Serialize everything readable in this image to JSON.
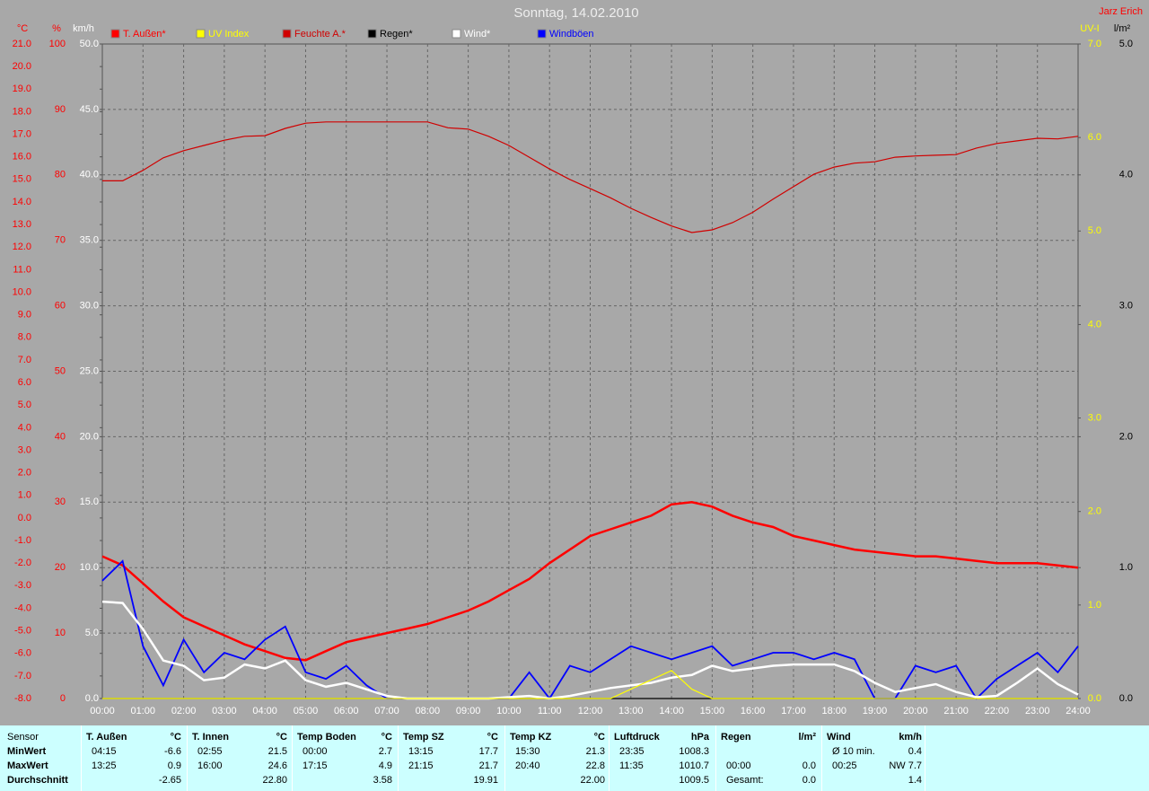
{
  "chart_data": {
    "type": "line",
    "title": "Sonntag, 14.02.2010",
    "author": "Jarz Erich",
    "grid": true,
    "x": [
      0,
      0.5,
      1,
      1.5,
      2,
      2.5,
      3,
      3.5,
      4,
      4.5,
      5,
      5.5,
      6,
      6.5,
      7,
      7.5,
      8,
      8.5,
      9,
      9.5,
      10,
      10.5,
      11,
      11.5,
      12,
      12.5,
      13,
      13.5,
      14,
      14.5,
      15,
      15.5,
      16,
      16.5,
      17,
      17.5,
      18,
      18.5,
      19,
      19.5,
      20,
      20.5,
      21,
      21.5,
      22,
      22.5,
      23,
      23.5,
      24
    ],
    "xlim": [
      0,
      24
    ],
    "xticks": [
      {
        "value": 0,
        "label": "00:00"
      },
      {
        "value": 1,
        "label": "01:00"
      },
      {
        "value": 2,
        "label": "02:00"
      },
      {
        "value": 3,
        "label": "03:00"
      },
      {
        "value": 4,
        "label": "04:00"
      },
      {
        "value": 5,
        "label": "05:00"
      },
      {
        "value": 6,
        "label": "06:00"
      },
      {
        "value": 7,
        "label": "07:00"
      },
      {
        "value": 8,
        "label": "08:00"
      },
      {
        "value": 9,
        "label": "09:00"
      },
      {
        "value": 10,
        "label": "10:00"
      },
      {
        "value": 11,
        "label": "11:00"
      },
      {
        "value": 12,
        "label": "12:00"
      },
      {
        "value": 13,
        "label": "13:00"
      },
      {
        "value": 14,
        "label": "14:00"
      },
      {
        "value": 15,
        "label": "15:00"
      },
      {
        "value": 16,
        "label": "16:00"
      },
      {
        "value": 17,
        "label": "17:00"
      },
      {
        "value": 18,
        "label": "18:00"
      },
      {
        "value": 19,
        "label": "19:00"
      },
      {
        "value": 20,
        "label": "20:00"
      },
      {
        "value": 21,
        "label": "21:00"
      },
      {
        "value": 22,
        "label": "22:00"
      },
      {
        "value": 23,
        "label": "23:00"
      },
      {
        "value": 24,
        "label": "24:00"
      }
    ],
    "ylabel": "°C",
    "ylim": [
      -8,
      21
    ],
    "yticks": [
      {
        "value": -8,
        "label": "-8.0"
      },
      {
        "value": -7,
        "label": "-7.0"
      },
      {
        "value": -6,
        "label": "-6.0"
      },
      {
        "value": -5,
        "label": "-5.0"
      },
      {
        "value": -4,
        "label": "-4.0"
      },
      {
        "value": -3,
        "label": "-3.0"
      },
      {
        "value": -2,
        "label": "-2.0"
      },
      {
        "value": -1,
        "label": "-1.0"
      },
      {
        "value": 0,
        "label": "0.0"
      },
      {
        "value": 1,
        "label": "1.0"
      },
      {
        "value": 2,
        "label": "2.0"
      },
      {
        "value": 3,
        "label": "3.0"
      },
      {
        "value": 4,
        "label": "4.0"
      },
      {
        "value": 5,
        "label": "5.0"
      },
      {
        "value": 6,
        "label": "6.0"
      },
      {
        "value": 7,
        "label": "7.0"
      },
      {
        "value": 8,
        "label": "8.0"
      },
      {
        "value": 9,
        "label": "9.0"
      },
      {
        "value": 10,
        "label": "10.0"
      },
      {
        "value": 11,
        "label": "11.0"
      },
      {
        "value": 12,
        "label": "12.0"
      },
      {
        "value": 13,
        "label": "13.0"
      },
      {
        "value": 14,
        "label": "14.0"
      },
      {
        "value": 15,
        "label": "15.0"
      },
      {
        "value": 16,
        "label": "16.0"
      },
      {
        "value": 17,
        "label": "17.0"
      },
      {
        "value": 18,
        "label": "18.0"
      },
      {
        "value": 19,
        "label": "19.0"
      },
      {
        "value": 20,
        "label": "20.0"
      },
      {
        "value": 21,
        "label": "21.0"
      }
    ],
    "y2label": "%",
    "y2lim": [
      0,
      100
    ],
    "y2ticks": [
      0,
      10,
      20,
      30,
      40,
      50,
      60,
      70,
      80,
      90,
      100
    ],
    "y3label": "km/h",
    "y3lim": [
      0,
      50
    ],
    "y3ticks": [
      {
        "value": 0,
        "label": "0.0"
      },
      {
        "value": 5,
        "label": "5.0"
      },
      {
        "value": 10,
        "label": "10.0"
      },
      {
        "value": 15,
        "label": "15.0"
      },
      {
        "value": 20,
        "label": "20.0"
      },
      {
        "value": 25,
        "label": "25.0"
      },
      {
        "value": 30,
        "label": "30.0"
      },
      {
        "value": 35,
        "label": "35.0"
      },
      {
        "value": 40,
        "label": "40.0"
      },
      {
        "value": 45,
        "label": "45.0"
      },
      {
        "value": 50,
        "label": "50.0"
      }
    ],
    "y4label": "UV-I",
    "y4lim": [
      0,
      7
    ],
    "y4ticks": [
      {
        "value": 0,
        "label": "0.0"
      },
      {
        "value": 1,
        "label": "1.0"
      },
      {
        "value": 2,
        "label": "2.0"
      },
      {
        "value": 3,
        "label": "3.0"
      },
      {
        "value": 4,
        "label": "4.0"
      },
      {
        "value": 5,
        "label": "5.0"
      },
      {
        "value": 6,
        "label": "6.0"
      },
      {
        "value": 7,
        "label": "7.0"
      }
    ],
    "y5label": "l/m²",
    "y5lim": [
      0,
      5
    ],
    "y5ticks": [
      {
        "value": 0,
        "label": "0.0"
      },
      {
        "value": 1,
        "label": "1.0"
      },
      {
        "value": 2,
        "label": "2.0"
      },
      {
        "value": 3,
        "label": "3.0"
      },
      {
        "value": 4,
        "label": "4.0"
      },
      {
        "value": 5,
        "label": "5.0"
      }
    ],
    "series": [
      {
        "name": "T. Außen*",
        "color": "#ff0000",
        "axis": "y",
        "values": [
          -1.7,
          -2.1,
          -2.9,
          -3.7,
          -4.4,
          -4.8,
          -5.2,
          -5.6,
          -5.9,
          -6.2,
          -6.3,
          -5.9,
          -5.5,
          -5.3,
          -5.1,
          -4.9,
          -4.7,
          -4.4,
          -4.1,
          -3.7,
          -3.2,
          -2.7,
          -2.0,
          -1.4,
          -0.8,
          -0.5,
          -0.2,
          0.1,
          0.6,
          0.7,
          0.5,
          0.1,
          -0.2,
          -0.4,
          -0.8,
          -1.0,
          -1.2,
          -1.4,
          -1.5,
          -1.6,
          -1.7,
          -1.7,
          -1.8,
          -1.9,
          -2.0,
          -2.0,
          -2.0,
          -2.1,
          -2.2
        ]
      },
      {
        "name": "UV Index",
        "color": "#ffff00",
        "axis": "y4",
        "values": [
          0,
          0,
          0,
          0,
          0,
          0,
          0,
          0,
          0,
          0,
          0,
          0,
          0,
          0,
          0,
          0,
          0,
          0,
          0,
          0,
          0,
          0,
          0,
          0,
          0,
          0,
          0.1,
          0.2,
          0.3,
          0.1,
          0,
          0,
          0,
          0,
          0,
          0,
          0,
          0,
          0,
          0,
          0,
          0,
          0,
          0,
          0,
          0,
          0,
          0,
          0
        ]
      },
      {
        "name": "Feuchte A.*",
        "color": "#d00000",
        "axis": "y2",
        "values": [
          79.1,
          79.1,
          80.7,
          82.6,
          83.7,
          84.5,
          85.3,
          85.9,
          86.0,
          87.1,
          87.9,
          88.1,
          88.1,
          88.1,
          88.1,
          88.1,
          88.1,
          87.2,
          87.0,
          85.9,
          84.5,
          82.7,
          80.9,
          79.3,
          77.9,
          76.5,
          74.9,
          73.5,
          72.2,
          71.2,
          71.6,
          72.7,
          74.3,
          76.3,
          78.2,
          80.1,
          81.2,
          81.8,
          82.0,
          82.7,
          82.9,
          83.0,
          83.1,
          84.1,
          84.8,
          85.2,
          85.6,
          85.5,
          85.9
        ]
      },
      {
        "name": "Regen*",
        "color": "#000000",
        "axis": "y5",
        "values": [
          0,
          0,
          0,
          0,
          0,
          0,
          0,
          0,
          0,
          0,
          0,
          0,
          0,
          0,
          0,
          0,
          0,
          0,
          0,
          0,
          0,
          0,
          0,
          0,
          0,
          0,
          0,
          0,
          0,
          0,
          0,
          0,
          0,
          0,
          0,
          0,
          0,
          0,
          0,
          0,
          0,
          0,
          0,
          0,
          0,
          0,
          0,
          0,
          0
        ]
      },
      {
        "name": "Wind*",
        "color": "#ffffff",
        "axis": "y3",
        "values": [
          7.4,
          7.3,
          5.3,
          2.9,
          2.5,
          1.4,
          1.6,
          2.6,
          2.3,
          2.9,
          1.4,
          0.9,
          1.2,
          0.7,
          0.2,
          0,
          0,
          0,
          0,
          0,
          0.1,
          0.2,
          0,
          0.2,
          0.5,
          0.8,
          1.0,
          1.2,
          1.6,
          1.8,
          2.5,
          2.1,
          2.3,
          2.5,
          2.6,
          2.6,
          2.6,
          2.1,
          1.2,
          0.5,
          0.8,
          1.1,
          0.5,
          0.1,
          0.2,
          1.2,
          2.3,
          1.1,
          0.3
        ]
      },
      {
        "name": "Windböen",
        "color": "#0000ff",
        "axis": "y3",
        "values": [
          9.0,
          10.5,
          4.0,
          1.0,
          4.5,
          2.0,
          3.5,
          3.0,
          4.5,
          5.5,
          2.0,
          1.5,
          2.5,
          1.0,
          0,
          0,
          0,
          0,
          0,
          0,
          0,
          2.0,
          0,
          2.5,
          2.0,
          3.0,
          4.0,
          3.5,
          3.0,
          3.5,
          4.0,
          2.5,
          3.0,
          3.5,
          3.5,
          3.0,
          3.5,
          3.0,
          0,
          0,
          2.5,
          2.0,
          2.5,
          0,
          1.5,
          2.5,
          3.5,
          2.0,
          4.0
        ]
      }
    ]
  },
  "stats": {
    "labels": [
      "Sensor",
      "MinWert",
      "MaxWert",
      "Durchschnitt"
    ],
    "groups": [
      {
        "name": "T. Außen",
        "unit": "°C",
        "min": {
          "time": "04:15",
          "value": "-6.6"
        },
        "max": {
          "time": "13:25",
          "value": "0.9"
        },
        "avg": {
          "value": "-2.65"
        }
      },
      {
        "name": "T. Innen",
        "unit": "°C",
        "min": {
          "time": "02:55",
          "value": "21.5"
        },
        "max": {
          "time": "16:00",
          "value": "24.6"
        },
        "avg": {
          "value": "22.80"
        }
      },
      {
        "name": "Temp Boden",
        "unit": "°C",
        "min": {
          "time": "00:00",
          "value": "2.7"
        },
        "max": {
          "time": "17:15",
          "value": "4.9"
        },
        "avg": {
          "value": "3.58"
        }
      },
      {
        "name": "Temp SZ",
        "unit": "°C",
        "min": {
          "time": "13:15",
          "value": "17.7"
        },
        "max": {
          "time": "21:15",
          "value": "21.7"
        },
        "avg": {
          "value": "19.91"
        }
      },
      {
        "name": "Temp KZ",
        "unit": "°C",
        "min": {
          "time": "15:30",
          "value": "21.3"
        },
        "max": {
          "time": "20:40",
          "value": "22.8"
        },
        "avg": {
          "value": "22.00"
        }
      },
      {
        "name": "Luftdruck",
        "unit": "hPa",
        "min": {
          "time": "23:35",
          "value": "1008.3"
        },
        "max": {
          "time": "11:35",
          "value": "1010.7"
        },
        "avg": {
          "value": "1009.5"
        }
      },
      {
        "name": "Regen",
        "unit": "l/m²",
        "max": {
          "time": "00:00",
          "value": "0.0"
        },
        "avg": {
          "time": "Gesamt:",
          "value": "0.0"
        }
      },
      {
        "name": "Wind",
        "unit": "km/h",
        "min": {
          "time": "Ø 10 min.",
          "value": "0.4"
        },
        "max": {
          "time": "00:25",
          "value": "NW 7.7"
        },
        "avg": {
          "value": "1.4"
        }
      }
    ]
  }
}
